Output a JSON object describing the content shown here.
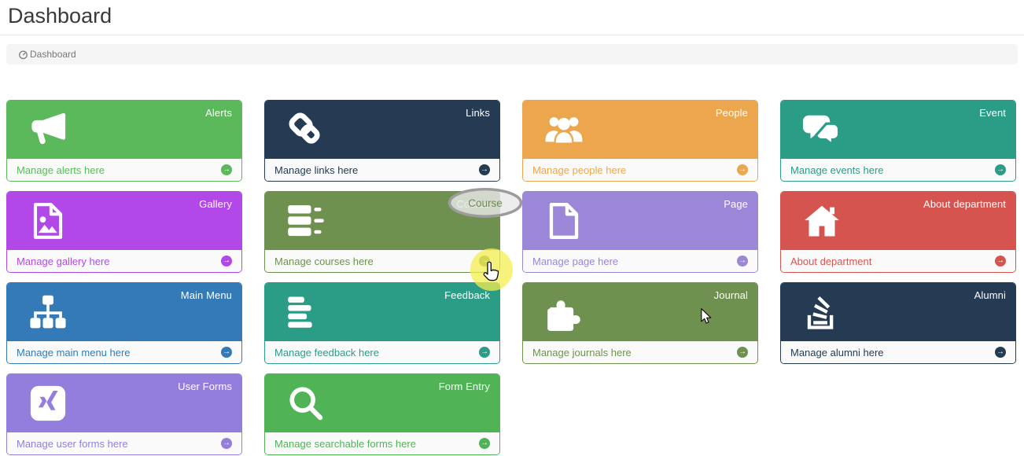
{
  "page": {
    "title": "Dashboard"
  },
  "breadcrumb": {
    "icon": "dashboard-icon",
    "label": "Dashboard"
  },
  "ui": {
    "footer_arrow_glyph": "→",
    "footer_arrow_icon": "arrow-circle-right-icon"
  },
  "tiles": [
    {
      "label": "Alerts",
      "footer": "Manage alerts here",
      "color": "#5bb95b",
      "icon": "bullhorn-icon"
    },
    {
      "label": "Links",
      "footer": "Manage links here",
      "color": "#243b53",
      "icon": "chain-icon"
    },
    {
      "label": "People",
      "footer": "Manage people here",
      "color": "#eca74e",
      "icon": "users-icon"
    },
    {
      "label": "Event",
      "footer": "Manage events here",
      "color": "#2b9c85",
      "icon": "comments-icon"
    },
    {
      "label": "Gallery",
      "footer": "Manage gallery here",
      "color": "#b248e8",
      "icon": "image-icon"
    },
    {
      "label": "Course",
      "footer": "Manage courses here",
      "color": "#6f9150",
      "icon": "server-icon"
    },
    {
      "label": "Page",
      "footer": "Manage page here",
      "color": "#9b86d8",
      "icon": "file-icon"
    },
    {
      "label": "About department",
      "footer": "About department",
      "color": "#d65450",
      "icon": "home-icon"
    },
    {
      "label": "Main Menu",
      "footer": "Manage main menu here",
      "color": "#337ab7",
      "icon": "sitemap-icon"
    },
    {
      "label": "Feedback",
      "footer": "Manage feedback here",
      "color": "#2b9c85",
      "icon": "align-left-icon"
    },
    {
      "label": "Journal",
      "footer": "Manage journals here",
      "color": "#6f9150",
      "icon": "puzzle-icon"
    },
    {
      "label": "Alumni",
      "footer": "Manage alumni here",
      "color": "#243b53",
      "icon": "stack-overflow-icon"
    },
    {
      "label": "User Forms",
      "footer": "Manage user forms here",
      "color": "#947edd",
      "icon": "xing-icon"
    },
    {
      "label": "Form Entry",
      "footer": "Manage searchable forms here",
      "color": "#50b456",
      "icon": "search-icon"
    }
  ],
  "annotations": {
    "course_ellipse_label": "Course",
    "ellipse_stroke_color": "#9c9c9c",
    "click_highlight_color": "#f3ed50",
    "cursors": [
      "hand-cursor",
      "arrow-cursor"
    ]
  }
}
